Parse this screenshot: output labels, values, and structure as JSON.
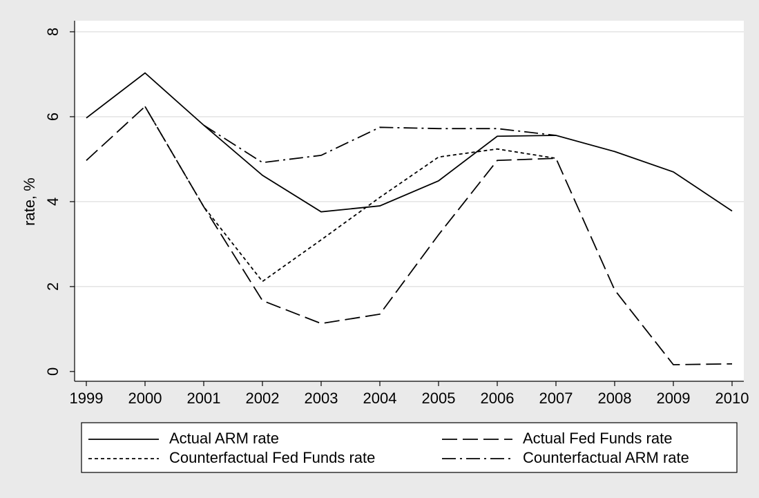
{
  "chart_data": {
    "type": "line",
    "y_label": "rate, %",
    "x": [
      1999,
      2000,
      2001,
      2002,
      2003,
      2004,
      2005,
      2006,
      2007,
      2008,
      2009,
      2010
    ],
    "xlim": [
      1998.8,
      2010.2
    ],
    "xticks": [
      1999,
      2000,
      2001,
      2002,
      2003,
      2004,
      2005,
      2006,
      2007,
      2008,
      2009,
      2010
    ],
    "ylim": [
      -0.23,
      8.26
    ],
    "yticks": [
      0,
      2,
      4,
      6,
      8
    ],
    "grid": true,
    "series": [
      {
        "name": "Actual ARM rate",
        "color": "#000000",
        "dash": "solid",
        "values": [
          5.97,
          7.03,
          5.8,
          4.62,
          3.76,
          3.9,
          4.49,
          5.54,
          5.56,
          5.18,
          4.7,
          3.78
        ]
      },
      {
        "name": "Actual Fed Funds rate",
        "color": "#000000",
        "dash": "longdash",
        "values": [
          4.97,
          6.24,
          3.88,
          1.67,
          1.13,
          1.35,
          3.22,
          4.97,
          5.02,
          1.92,
          0.16,
          0.18
        ]
      },
      {
        "name": "Counterfactual Fed Funds rate",
        "color": "#000000",
        "dash": "shortdash",
        "values": [
          null,
          6.24,
          3.88,
          2.12,
          3.1,
          4.1,
          5.05,
          5.24,
          5.02,
          null,
          null,
          null
        ]
      },
      {
        "name": "Counterfactual ARM rate",
        "color": "#000000",
        "dash": "dashdot",
        "values": [
          null,
          null,
          5.8,
          4.92,
          5.09,
          5.75,
          5.72,
          5.72,
          5.56,
          null,
          null,
          null
        ]
      }
    ]
  }
}
